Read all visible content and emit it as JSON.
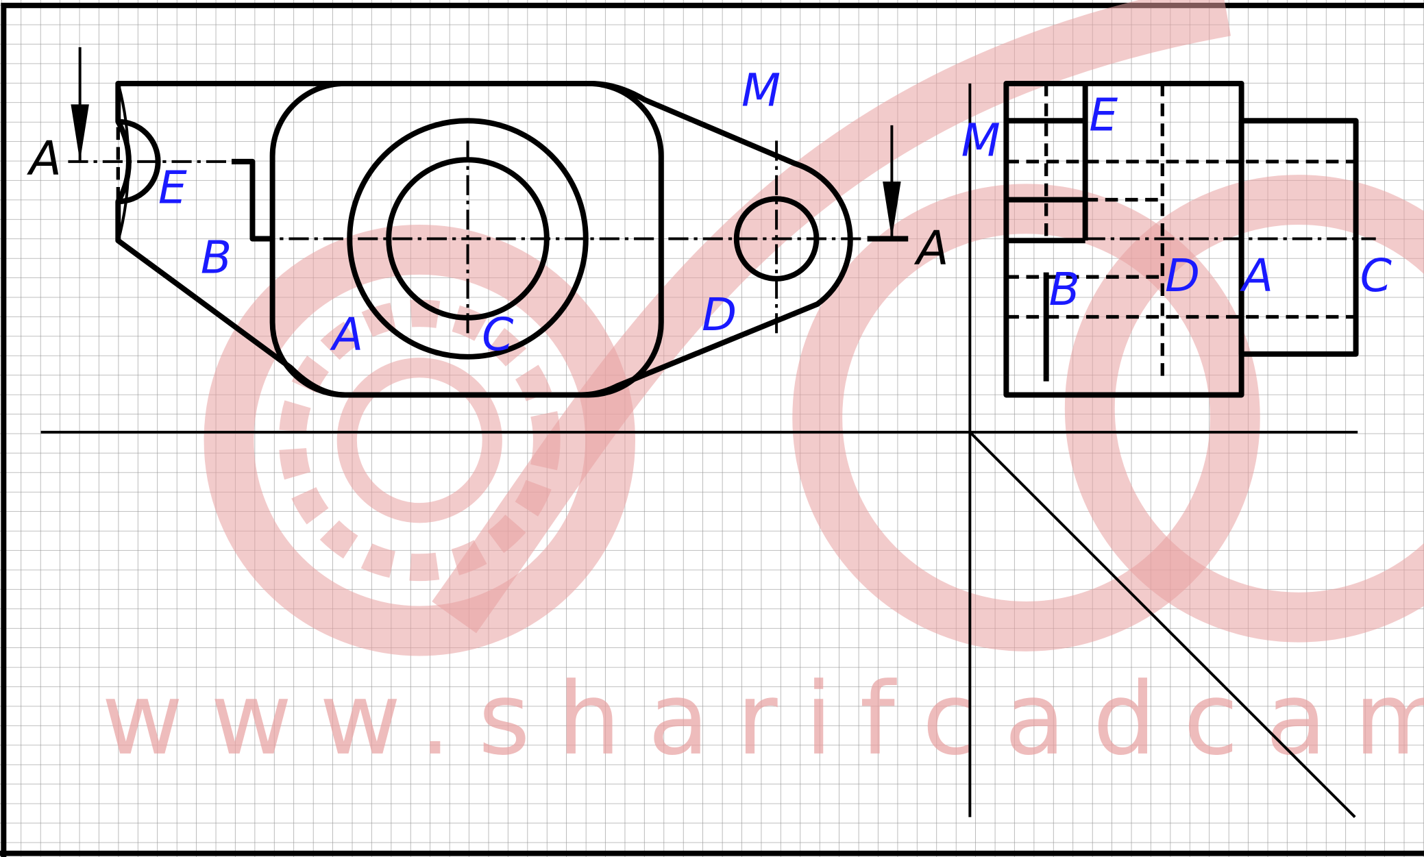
{
  "watermark": "www.sharifcadcam",
  "section_marks": [
    "A",
    "A"
  ],
  "front_view": {
    "labels": [
      "E",
      "B",
      "A",
      "C",
      "D",
      "M"
    ]
  },
  "side_view": {
    "labels": [
      "M",
      "E",
      "B",
      "D",
      "A",
      "C"
    ]
  }
}
